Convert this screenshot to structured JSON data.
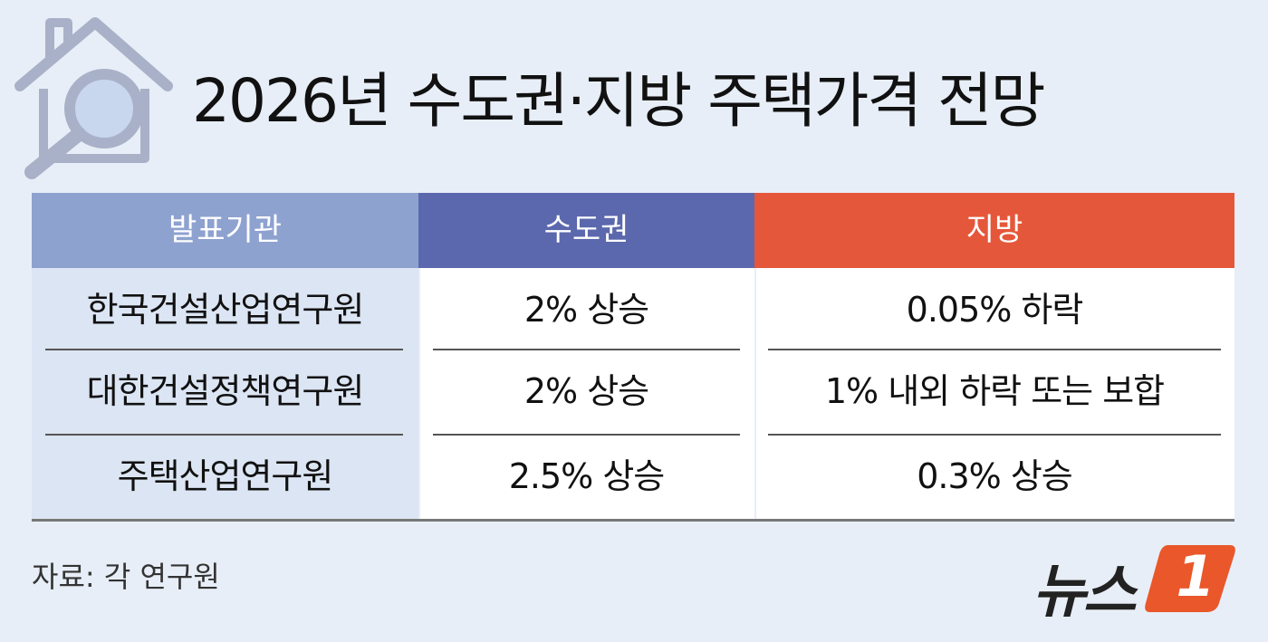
{
  "header": {
    "title": "2026년 수도권·지방 주택가격 전망"
  },
  "table": {
    "columns": [
      "발표기관",
      "수도권",
      "지방"
    ],
    "rows": [
      [
        "한국건설산업연구원",
        "2% 상승",
        "0.05% 하락"
      ],
      [
        "대한건설정책연구원",
        "2% 상승",
        "1% 내외 하락 또는 보합"
      ],
      [
        "주택산업연구원",
        "2.5% 상승",
        "0.3% 상승"
      ]
    ]
  },
  "footer": {
    "source": "자료: 각 연구원",
    "logo_text": "뉴스",
    "logo_number": "1"
  }
}
